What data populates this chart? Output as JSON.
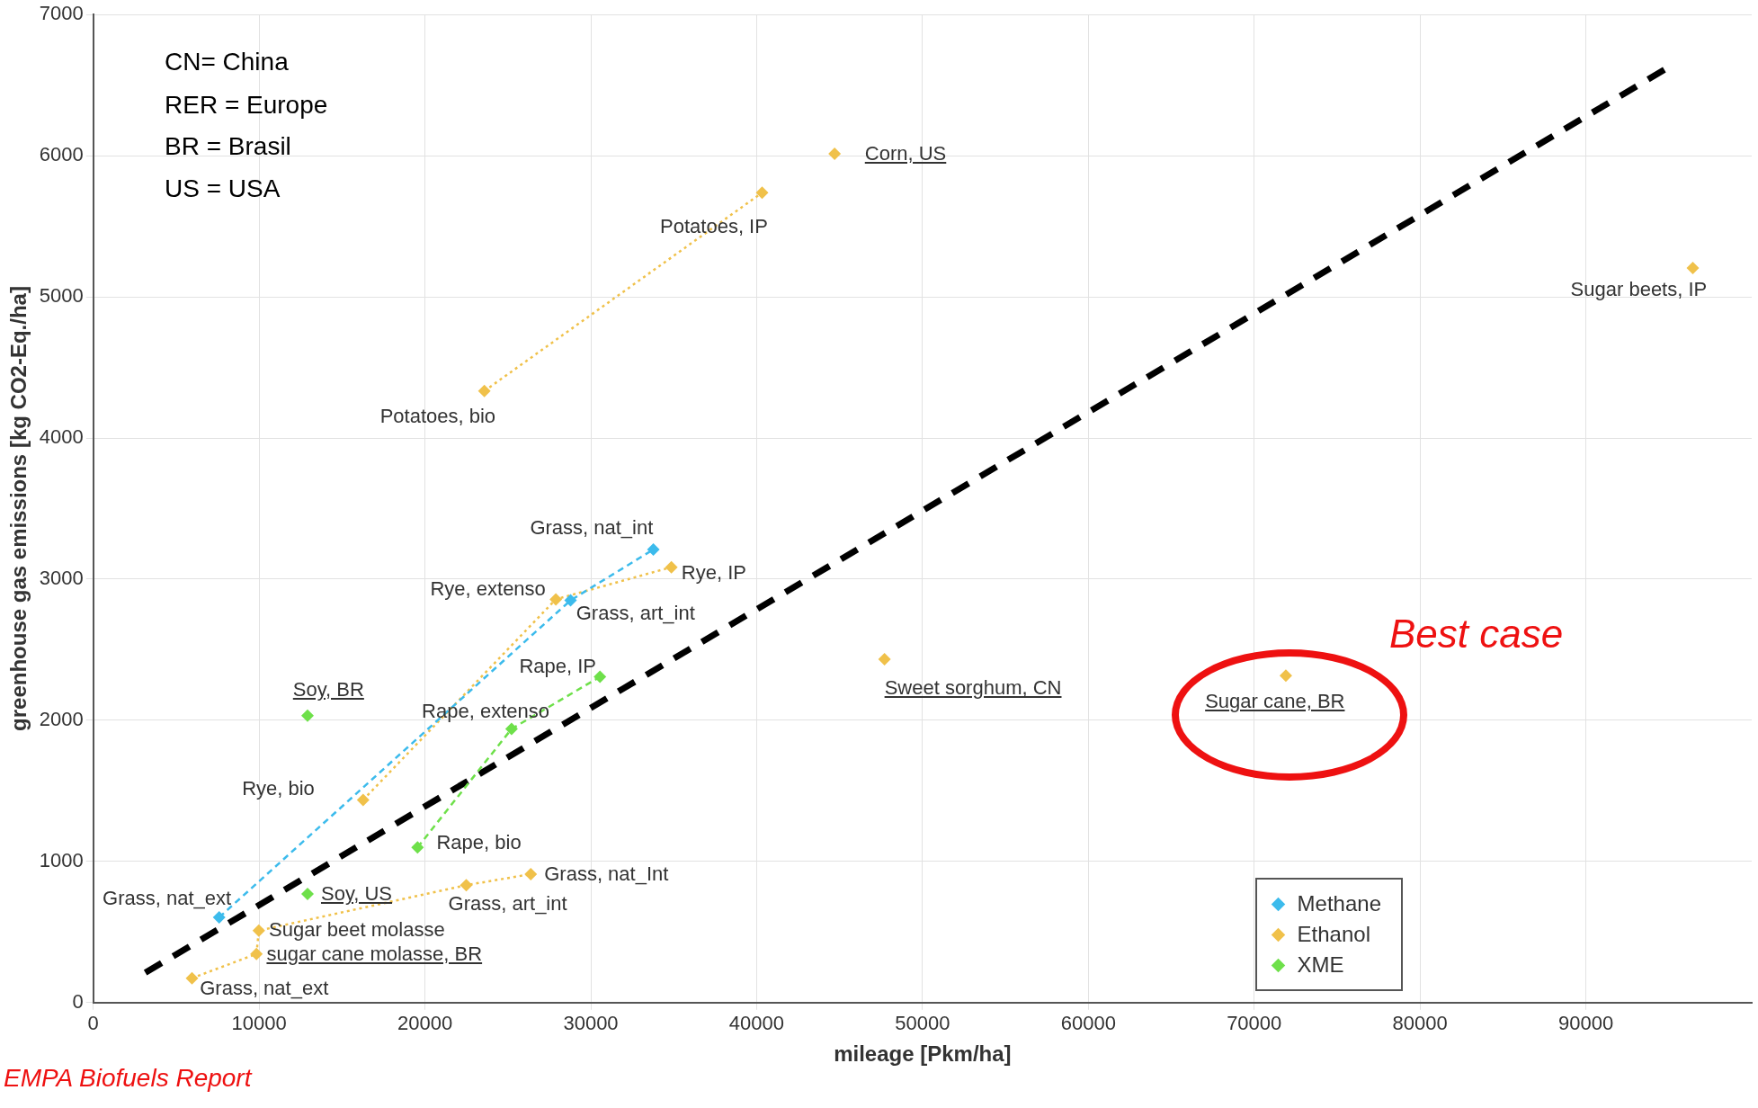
{
  "chart_data": {
    "type": "scatter",
    "xlabel": "mileage [Pkm/ha]",
    "ylabel": "greenhouse gas emissions [kg CO2-Eq./ha]",
    "xlim": [
      0,
      100000
    ],
    "xticks": [
      0,
      10000,
      20000,
      30000,
      40000,
      50000,
      60000,
      70000,
      80000,
      90000
    ],
    "ylim": [
      0,
      7000
    ],
    "yticks": [
      0,
      1000,
      2000,
      3000,
      4000,
      5000,
      6000,
      7000
    ],
    "grid": true,
    "legend": "bottom right",
    "marker": "diamond",
    "series": [
      {
        "name": "Methane",
        "color": "#3cbbec",
        "type": "line",
        "line_style": "dashed",
        "x": [
          7590,
          28780,
          33770
        ],
        "values": [
          604,
          2850,
          3210
        ]
      },
      {
        "name": "Ethanol",
        "color": "#f0c14a",
        "type": "line",
        "line_style": "dotted",
        "x": [
          5950,
          9840,
          9980,
          22490,
          26380,
          null,
          16270,
          27890,
          34860,
          null,
          23580,
          40330,
          null,
          44700,
          null,
          47710,
          null,
          71910,
          null,
          96450
        ],
        "values": [
          173,
          345,
          510,
          832,
          910,
          null,
          1436,
          2857,
          3085,
          null,
          4333,
          5738,
          null,
          6013,
          null,
          2433,
          null,
          2316,
          null,
          5204
        ]
      },
      {
        "name": "XME",
        "color": "#6ee04a",
        "type": "line",
        "line_style": "dashed",
        "x": [
          19550,
          25220,
          30550,
          null,
          12920,
          null,
          12920
        ],
        "values": [
          1099,
          1939,
          2308,
          null,
          2033,
          null,
          769
        ]
      },
      {
        "color": "#000000",
        "type": "line",
        "line_style": "dashed",
        "marker": "none",
        "x": [
          3140,
          95080
        ],
        "values": [
          212,
          6633
        ]
      }
    ],
    "annotations": [
      {
        "text": "Corn, US",
        "x": 44700,
        "y": 6013
      },
      {
        "text": "Potatoes, IP",
        "x": 40330,
        "y": 5738
      },
      {
        "text": "Sugar beets, IP",
        "x": 96450,
        "y": 5204
      },
      {
        "text": "Potatoes, bio",
        "x": 23580,
        "y": 4333
      },
      {
        "text": "Grass, nat_int",
        "x": 33770,
        "y": 3210
      },
      {
        "text": "Rye, IP",
        "x": 34860,
        "y": 3085
      },
      {
        "text": "Rye, extenso",
        "x": 27890,
        "y": 2857
      },
      {
        "text": "Grass, art_int",
        "x": 28780,
        "y": 2850
      },
      {
        "text": "Rape, IP",
        "x": 30550,
        "y": 2308
      },
      {
        "text": "Sweet sorghum, CN",
        "x": 47710,
        "y": 2433
      },
      {
        "text": "Sugar cane, BR",
        "x": 71910,
        "y": 2316
      },
      {
        "text": "Soy, BR",
        "x": 12920,
        "y": 2033
      },
      {
        "text": "Rape, extenso",
        "x": 25220,
        "y": 1939
      },
      {
        "text": "Rye, bio",
        "x": 16270,
        "y": 1436
      },
      {
        "text": "Rape, bio",
        "x": 19550,
        "y": 1099
      },
      {
        "text": "Grass, nat_Int",
        "x": 26380,
        "y": 910
      },
      {
        "text": "Grass, art_int",
        "x": 22490,
        "y": 832
      },
      {
        "text": "Soy, US",
        "x": 12920,
        "y": 769
      },
      {
        "text": "Grass, nat_ext",
        "x": 7590,
        "y": 604
      },
      {
        "text": "Sugar beet molasse",
        "x": 9980,
        "y": 510
      },
      {
        "text": "sugar cane molasse, BR",
        "x": 9840,
        "y": 345
      },
      {
        "text": "Grass, nat_ext",
        "x": 5950,
        "y": 173
      },
      "CN= China",
      "RER = Europe",
      "BR = Brasil",
      "US = USA",
      "Best case",
      "EMPA Biofuels Report"
    ]
  }
}
